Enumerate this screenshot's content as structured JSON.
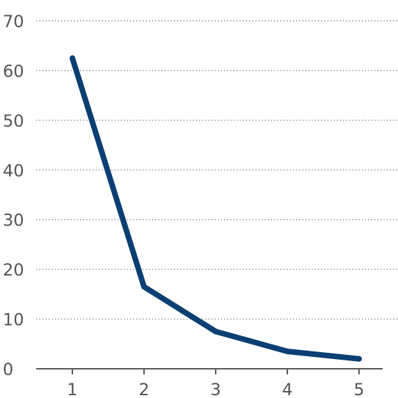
{
  "chart_data": {
    "type": "line",
    "title": "",
    "xlabel": "",
    "ylabel": "",
    "x": [
      1,
      2,
      3,
      4,
      5
    ],
    "series": [
      {
        "values": [
          62.5,
          16.5,
          7.5,
          3.5,
          2.0
        ]
      }
    ],
    "ylim": [
      0,
      70
    ],
    "yticks": [
      0,
      10,
      20,
      30,
      40,
      50,
      60,
      70
    ],
    "xticks": [
      "1",
      "2",
      "3",
      "4",
      "5"
    ],
    "grid": "horizontal dotted",
    "legend": "none",
    "colors": {
      "line": "#0a3f73",
      "grid": "#8a8a8a",
      "text": "#555555"
    }
  }
}
